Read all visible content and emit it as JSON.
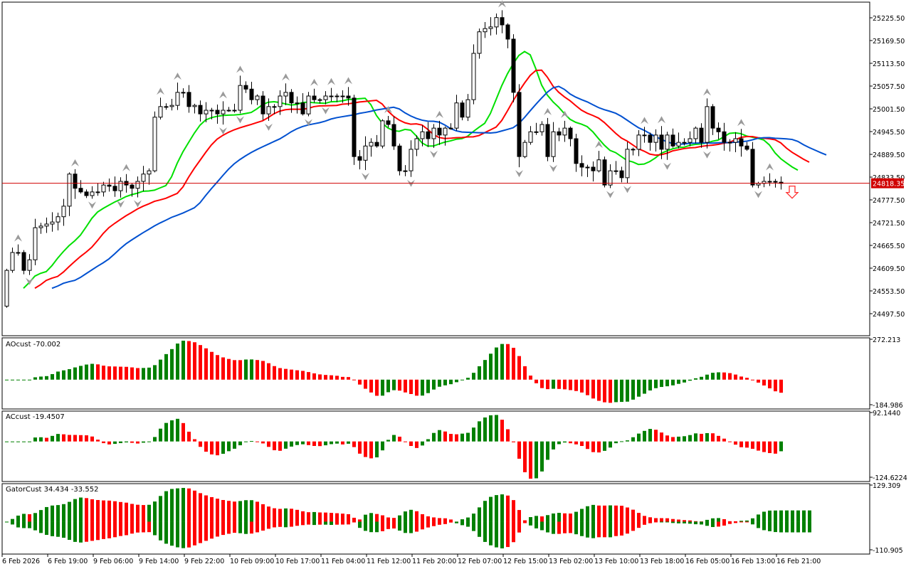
{
  "chart_data": {
    "type": "candlestick",
    "timeframe_labels": [
      "6 Feb 2026",
      "6 Feb 19:00",
      "9 Feb 06:00",
      "9 Feb 14:00",
      "9 Feb 22:00",
      "10 Feb 09:00",
      "10 Feb 17:00",
      "11 Feb 04:00",
      "11 Feb 12:00",
      "11 Feb 20:00",
      "12 Feb 07:00",
      "12 Feb 15:00",
      "13 Feb 02:00",
      "13 Feb 10:00",
      "13 Feb 18:00",
      "16 Feb 05:00",
      "16 Feb 13:00",
      "16 Feb 21:00"
    ],
    "first_open": 24516,
    "close": [
      24604,
      24648,
      24648,
      24604,
      24630,
      24709,
      24713,
      24718,
      24723,
      24736,
      24762,
      24841,
      24806,
      24797,
      24788,
      24797,
      24797,
      24814,
      24811,
      24800,
      24823,
      24814,
      24806,
      24823,
      24841,
      24849,
      24981,
      25007,
      25007,
      25010,
      25042,
      25042,
      25007,
      25010,
      24989,
      24998,
      24998,
      24989,
      24998,
      24998,
      24998,
      25059,
      25050,
      25024,
      25033,
      24989,
      25007,
      25007,
      25033,
      25042,
      25016,
      25016,
      24989,
      25033,
      25024,
      25024,
      25033,
      25033,
      25033,
      25033,
      25028,
      24884,
      24875,
      24910,
      24919,
      24910,
      24972,
      24963,
      24910,
      24849,
      24849,
      24902,
      24928,
      24945,
      24928,
      24954,
      24937,
      24954,
      24954,
      25016,
      24981,
      25024,
      25138,
      25191,
      25199,
      25203,
      25226,
      25208,
      25173,
      25042,
      24884,
      24919,
      24945,
      24945,
      24963,
      24884,
      24945,
      24937,
      24954,
      24928,
      24867,
      24858,
      24858,
      24849,
      24876,
      24814,
      24849,
      24849,
      24832,
      24902,
      24902,
      24937,
      24937,
      24919,
      24937,
      24902,
      24937,
      24910,
      24919,
      24919,
      24928,
      24954,
      24919,
      25007,
      24954,
      24945,
      24919,
      24919,
      24928,
      24910,
      24902,
      24814,
      24818,
      24823,
      24823,
      24821,
      24818
    ],
    "price_axis": {
      "ylim": [
        24443.25,
        25264
      ],
      "ticks": [
        "25225.50",
        "25169.50",
        "25113.50",
        "25057.50",
        "25001.50",
        "24945.50",
        "24889.50",
        "24833.50",
        "24777.50",
        "24721.50",
        "24665.50",
        "24609.50",
        "24553.50",
        "24497.50"
      ]
    },
    "current_price": "24818.35",
    "lines": [
      {
        "color": "#00e000"
      },
      {
        "color": "#ff0000"
      },
      {
        "color": "#0050d0"
      }
    ],
    "colors": {
      "up": "#008000",
      "down": "#ff0000",
      "price_line": "#d00000"
    },
    "signal": "sell-arrow",
    "indicators": [
      {
        "label": "AOcust -70.002",
        "max": "272.213",
        "min": "-184.986"
      },
      {
        "label": "ACcust -19.4507",
        "max": "92.1440",
        "min": "-124.6224"
      },
      {
        "label": "GatorCust 34.434 -33.552",
        "max": "129.309",
        "min": "-110.905"
      }
    ]
  }
}
